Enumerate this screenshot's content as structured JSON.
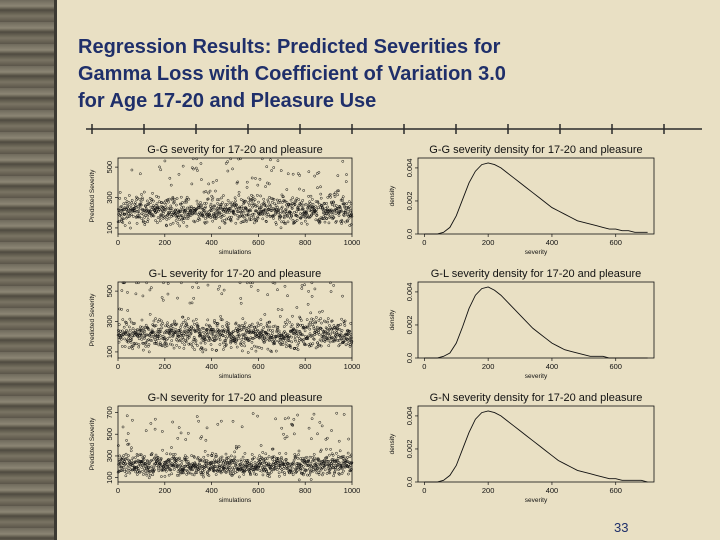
{
  "slide": {
    "title_lines": [
      "Regression Results: Predicted Severities for",
      "Gamma Loss with Coefficient of Variation 3.0",
      "for Age 17-20 and Pleasure Use"
    ],
    "page_number": "33"
  },
  "colors": {
    "background": "#e9e0c4",
    "title": "#1f2f6a",
    "plot_ink": "#111111",
    "margin_texture": "#6f6a5c"
  },
  "chart_data": [
    {
      "type": "scatter",
      "title": "G-G severity for 17-20 and pleasure",
      "xlabel": "simulations",
      "ylabel": "Predicted Severity",
      "x_ticks": [
        "0",
        "200",
        "400",
        "600",
        "800",
        "1000"
      ],
      "y_ticks": [
        "100",
        "300",
        "500"
      ],
      "xlim": [
        0,
        1000
      ],
      "ylim": [
        60,
        560
      ],
      "n_points": 1000,
      "center": 210,
      "spread": 55,
      "upper_tail": 320,
      "seed": 11
    },
    {
      "type": "line",
      "title": "G-G severity density for 17-20 and pleasure",
      "xlabel": "severity",
      "ylabel": "density",
      "x_ticks": [
        "0",
        "200",
        "400",
        "600"
      ],
      "y_ticks": [
        "0.0",
        "0.002",
        "0.004"
      ],
      "xlim": [
        -20,
        720
      ],
      "ylim": [
        0,
        0.0046
      ],
      "x": [
        0,
        20,
        40,
        60,
        80,
        100,
        120,
        140,
        160,
        180,
        200,
        220,
        240,
        260,
        280,
        300,
        320,
        340,
        360,
        380,
        400,
        420,
        440,
        460,
        480,
        500,
        520,
        540,
        560,
        580,
        600,
        620,
        640,
        660,
        680,
        700
      ],
      "y": [
        0.0,
        0.0,
        0.0,
        0.0001,
        0.0004,
        0.0011,
        0.0021,
        0.0031,
        0.0038,
        0.0042,
        0.0043,
        0.0042,
        0.004,
        0.0037,
        0.0034,
        0.0031,
        0.0028,
        0.0025,
        0.0022,
        0.0019,
        0.0016,
        0.0014,
        0.0012,
        0.001,
        0.0008,
        0.0007,
        0.0006,
        0.0005,
        0.0004,
        0.0003,
        0.0003,
        0.0002,
        0.0002,
        0.0001,
        0.0001,
        0.0001
      ]
    },
    {
      "type": "scatter",
      "title": "G-L severity for 17-20 and pleasure",
      "xlabel": "simulations",
      "ylabel": "Predicted Severity",
      "x_ticks": [
        "0",
        "200",
        "400",
        "600",
        "800",
        "1000"
      ],
      "y_ticks": [
        "100",
        "300",
        "500"
      ],
      "xlim": [
        0,
        1000
      ],
      "ylim": [
        60,
        560
      ],
      "n_points": 1000,
      "center": 215,
      "spread": 58,
      "upper_tail": 330,
      "seed": 23
    },
    {
      "type": "line",
      "title": "G-L severity density for 17-20 and pleasure",
      "xlabel": "severity",
      "ylabel": "density",
      "x_ticks": [
        "0",
        "200",
        "400",
        "600"
      ],
      "y_ticks": [
        "0.0",
        "0.002",
        "0.004"
      ],
      "xlim": [
        -20,
        720
      ],
      "ylim": [
        0,
        0.0046
      ],
      "x": [
        0,
        20,
        40,
        60,
        80,
        100,
        120,
        140,
        160,
        180,
        200,
        220,
        240,
        260,
        280,
        300,
        320,
        340,
        360,
        380,
        400,
        420,
        440,
        460,
        480,
        500,
        520,
        540,
        560,
        580,
        600,
        620,
        640,
        660,
        680,
        700
      ],
      "y": [
        0.0,
        0.0,
        0.0,
        0.0001,
        0.0003,
        0.0009,
        0.0019,
        0.003,
        0.0038,
        0.0042,
        0.0043,
        0.0041,
        0.0038,
        0.0034,
        0.003,
        0.0026,
        0.0022,
        0.0018,
        0.0015,
        0.0012,
        0.0009,
        0.0007,
        0.0005,
        0.0004,
        0.0003,
        0.0002,
        0.0001,
        0.0001,
        0.0001,
        0.0,
        0.0,
        0.0,
        0.0,
        0.0,
        0.0,
        0.0
      ]
    },
    {
      "type": "scatter",
      "title": "G-N severity for 17-20 and pleasure",
      "xlabel": "simulations",
      "ylabel": "Predicted Severity",
      "x_ticks": [
        "0",
        "200",
        "400",
        "600",
        "800",
        "1000"
      ],
      "y_ticks": [
        "100",
        "300",
        "500",
        "700"
      ],
      "xlim": [
        0,
        1000
      ],
      "ylim": [
        60,
        760
      ],
      "n_points": 1000,
      "center": 215,
      "spread": 60,
      "upper_tail": 420,
      "seed": 37
    },
    {
      "type": "line",
      "title": "G-N severity density for 17-20 and pleasure",
      "xlabel": "severity",
      "ylabel": "density",
      "x_ticks": [
        "0",
        "200",
        "400",
        "600"
      ],
      "y_ticks": [
        "0.0",
        "0.002",
        "0.004"
      ],
      "xlim": [
        -20,
        720
      ],
      "ylim": [
        0,
        0.0046
      ],
      "x": [
        0,
        20,
        40,
        60,
        80,
        100,
        120,
        140,
        160,
        180,
        200,
        220,
        240,
        260,
        280,
        300,
        320,
        340,
        360,
        380,
        400,
        420,
        440,
        460,
        480,
        500,
        520,
        540,
        560,
        580,
        600,
        620,
        640,
        660,
        680,
        700
      ],
      "y": [
        0.0,
        0.0,
        0.0,
        0.0001,
        0.0004,
        0.001,
        0.002,
        0.003,
        0.0038,
        0.0042,
        0.0043,
        0.0042,
        0.004,
        0.0037,
        0.0034,
        0.0031,
        0.0028,
        0.0025,
        0.0022,
        0.0019,
        0.0016,
        0.0013,
        0.0011,
        0.0009,
        0.0007,
        0.0006,
        0.0005,
        0.0004,
        0.0003,
        0.0002,
        0.0002,
        0.0001,
        0.0001,
        0.0001,
        0.0001,
        0.0
      ]
    }
  ]
}
